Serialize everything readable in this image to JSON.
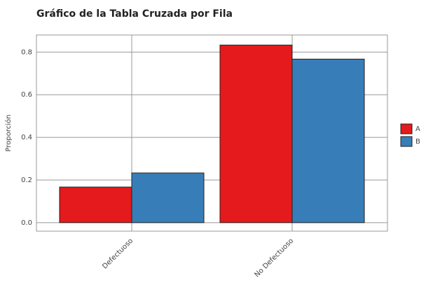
{
  "chart_data": {
    "type": "bar",
    "title": "Gráfico de la Tabla Cruzada por Fila",
    "y_label": "Proporción",
    "categories": [
      "Defectuoso",
      "No Defectuoso"
    ],
    "series": [
      {
        "name": "A",
        "color": "#e41a1c",
        "values": [
          0.167,
          0.833
        ]
      },
      {
        "name": "B",
        "color": "#377eb8",
        "values": [
          0.233,
          0.767
        ]
      }
    ],
    "ylim": [
      -0.04,
      0.88
    ],
    "yticks": [
      {
        "value": 0,
        "label": "0.0"
      },
      0.2,
      0.4,
      0.6,
      0.8
    ],
    "grid": true,
    "legend": "right"
  }
}
